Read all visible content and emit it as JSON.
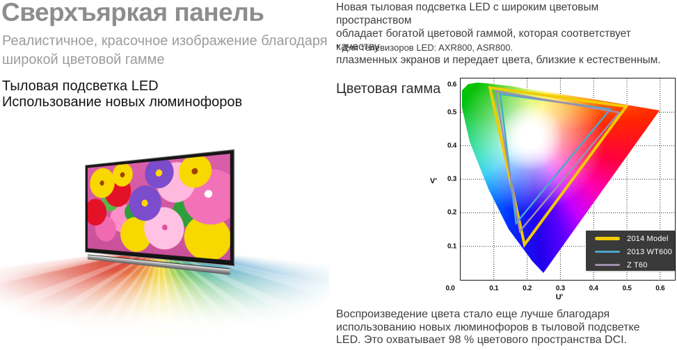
{
  "page": {
    "title": "Сверхъяркая панель",
    "subtitle_lines": [
      "Реалистичное, красочное изображение благодаря",
      "широкой цветовой гамме"
    ],
    "feature_heading_lines": [
      "Тыловая подсветка LED",
      "Использование новых люминофоров"
    ],
    "intro_lines": [
      "Новая тыловая подсветка LED с широким цветовым пространством",
      "обладает богатой цветовой гаммой, которая соответствует качеству",
      "плазменных экранов и передает цвета, близкие к естественным."
    ],
    "footnote": "* Для телевизоров LED: AXR800, ASR800.",
    "outro_lines": [
      "Воспроизведение цвета стало еще лучше благодаря",
      "использованию новых люминофоров в тыловой подсветке",
      "LED. Это охватывает 98 % цветового пространства DCI."
    ],
    "colors": {
      "title": "#8d8d8d",
      "subtitle": "#9c9c9c",
      "heading": "#141414",
      "body": "#3e3e3e"
    }
  },
  "chart_data": {
    "type": "area",
    "title": "Цветовая гамма",
    "xlabel": "U'",
    "ylabel": "V'",
    "xlim": [
      0,
      0.645
    ],
    "ylim": [
      0,
      0.6
    ],
    "xticks": [
      0.0,
      0.1,
      0.2,
      0.3,
      0.4,
      0.5,
      0.6
    ],
    "yticks": [
      0.1,
      0.2,
      0.3,
      0.4,
      0.5,
      0.6
    ],
    "grid": true,
    "legend_position": "bottom-right",
    "legend_bg": "#3a3a3a",
    "background": "CIE 1976 u'v' chromaticity horseshoe filled with spectral hue gradient, white near D65",
    "series": [
      {
        "name": "2014 Model",
        "color": "#f2cb05",
        "line_width": 4,
        "vertices_uv": [
          [
            0.088,
            0.573
          ],
          [
            0.498,
            0.517
          ],
          [
            0.192,
            0.105
          ]
        ]
      },
      {
        "name": "2013 WT600",
        "color": "#4da7cd",
        "line_width": 2.5,
        "vertices_uv": [
          [
            0.119,
            0.554
          ],
          [
            0.45,
            0.509
          ],
          [
            0.167,
            0.169
          ]
        ]
      },
      {
        "name": "Z T60",
        "color": "#a08fad",
        "line_width": 2.5,
        "vertices_uv": [
          [
            0.105,
            0.563
          ],
          [
            0.477,
            0.499
          ],
          [
            0.178,
            0.145
          ]
        ]
      }
    ]
  }
}
